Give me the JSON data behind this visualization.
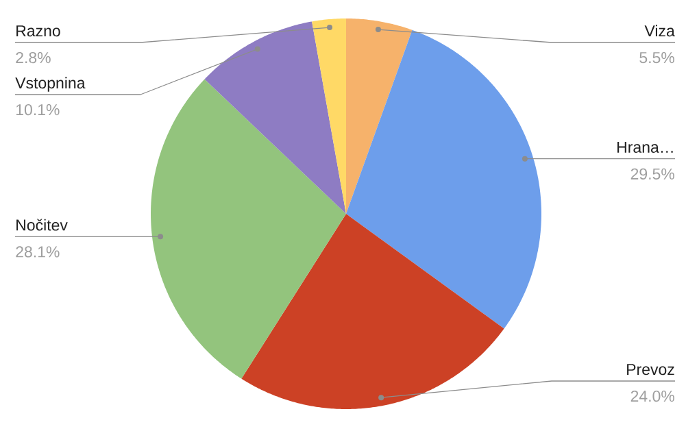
{
  "chart_data": {
    "type": "pie",
    "categories": [
      "Viza",
      "Hrana…",
      "Prevoz",
      "Nočitev",
      "Vstopnina",
      "Razno"
    ],
    "values": [
      5.5,
      29.5,
      24.0,
      28.1,
      10.1,
      2.8
    ],
    "colors": [
      "#f6b26b",
      "#6d9eeb",
      "#cc4125",
      "#93c47d",
      "#8e7cc3",
      "#ffd966"
    ],
    "value_labels": [
      "5.5%",
      "29.5%",
      "24.0%",
      "28.1%",
      "10.1%",
      "2.8%"
    ]
  }
}
